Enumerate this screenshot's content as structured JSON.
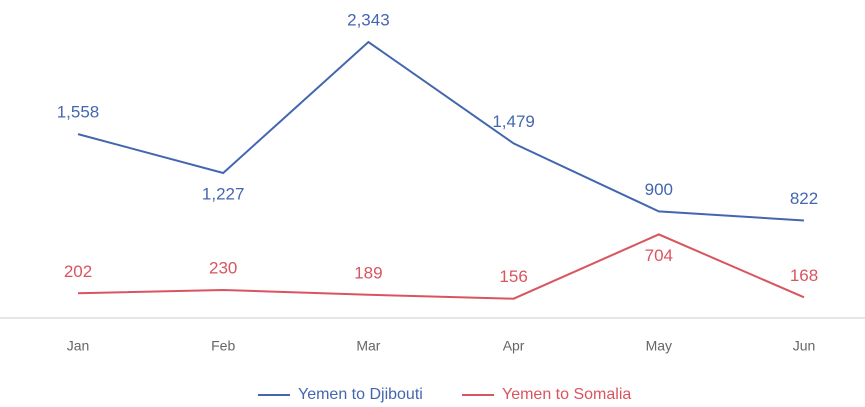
{
  "chart_data": {
    "type": "line",
    "categories": [
      "Jan",
      "Feb",
      "Mar",
      "Apr",
      "May",
      "Jun"
    ],
    "series": [
      {
        "name": "Yemen to Djibouti",
        "color": "#4466b0",
        "values": [
          1558,
          1227,
          2343,
          1479,
          900,
          822
        ],
        "value_labels": [
          "1,558",
          "1,227",
          "2,343",
          "1,479",
          "900",
          "822"
        ]
      },
      {
        "name": "Yemen to Somalia",
        "color": "#d9545e",
        "values": [
          202,
          230,
          189,
          156,
          704,
          168
        ],
        "value_labels": [
          "202",
          "230",
          "189",
          "156",
          "704",
          "168"
        ]
      }
    ]
  }
}
